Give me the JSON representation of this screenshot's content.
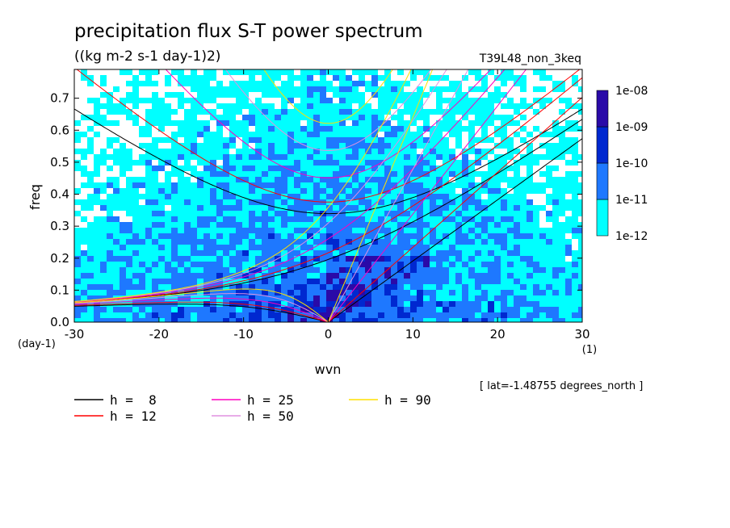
{
  "chart_data": {
    "type": "heatmap",
    "title": "precipitation flux S-T power spectrum",
    "subtitle": "((kg m-2 s-1 day-1)2)",
    "run_label": "T39L48_non_3keq",
    "xlabel": "wvn",
    "ylabel": "freq",
    "x_unit": "(1)",
    "y_unit": "(day-1)",
    "xlim": [
      -30,
      30
    ],
    "ylim": [
      0,
      0.79
    ],
    "x_ticks": [
      -30,
      -20,
      -10,
      0,
      10,
      20,
      30
    ],
    "y_ticks": [
      0.0,
      0.1,
      0.2,
      0.3,
      0.4,
      0.5,
      0.6,
      0.7
    ],
    "x_tick_labels": [
      "-30",
      "-20",
      "-10",
      "0",
      "10",
      "20",
      "30"
    ],
    "y_tick_labels": [
      "0.0",
      "0.1",
      "0.2",
      "0.3",
      "0.4",
      "0.5",
      "0.6",
      "0.7"
    ],
    "location_note": "[ lat=-1.48755 degrees_north ]",
    "colorbar": {
      "levels": [
        "1e-12",
        "1e-11",
        "1e-10",
        "1e-09",
        "1e-08"
      ],
      "colors": [
        "#00ffff",
        "#1e78ff",
        "#0028d0",
        "#2a0aa8"
      ],
      "below_color": "#ffffff"
    },
    "dispersion_curves": [
      {
        "label": "h =  8",
        "h": 8,
        "color": "#000000"
      },
      {
        "label": "h = 12",
        "h": 12,
        "color": "#ff0000"
      },
      {
        "label": "h = 25",
        "h": 25,
        "color": "#ff00c0"
      },
      {
        "label": "h = 50",
        "h": 50,
        "color": "#e090e0"
      },
      {
        "label": "h = 90",
        "h": 90,
        "color": "#ffe000"
      }
    ],
    "curve_types": [
      "kelvin",
      "eastward_inertia_gravity_n0",
      "inertia_gravity_n1",
      "rossby_n1"
    ]
  }
}
